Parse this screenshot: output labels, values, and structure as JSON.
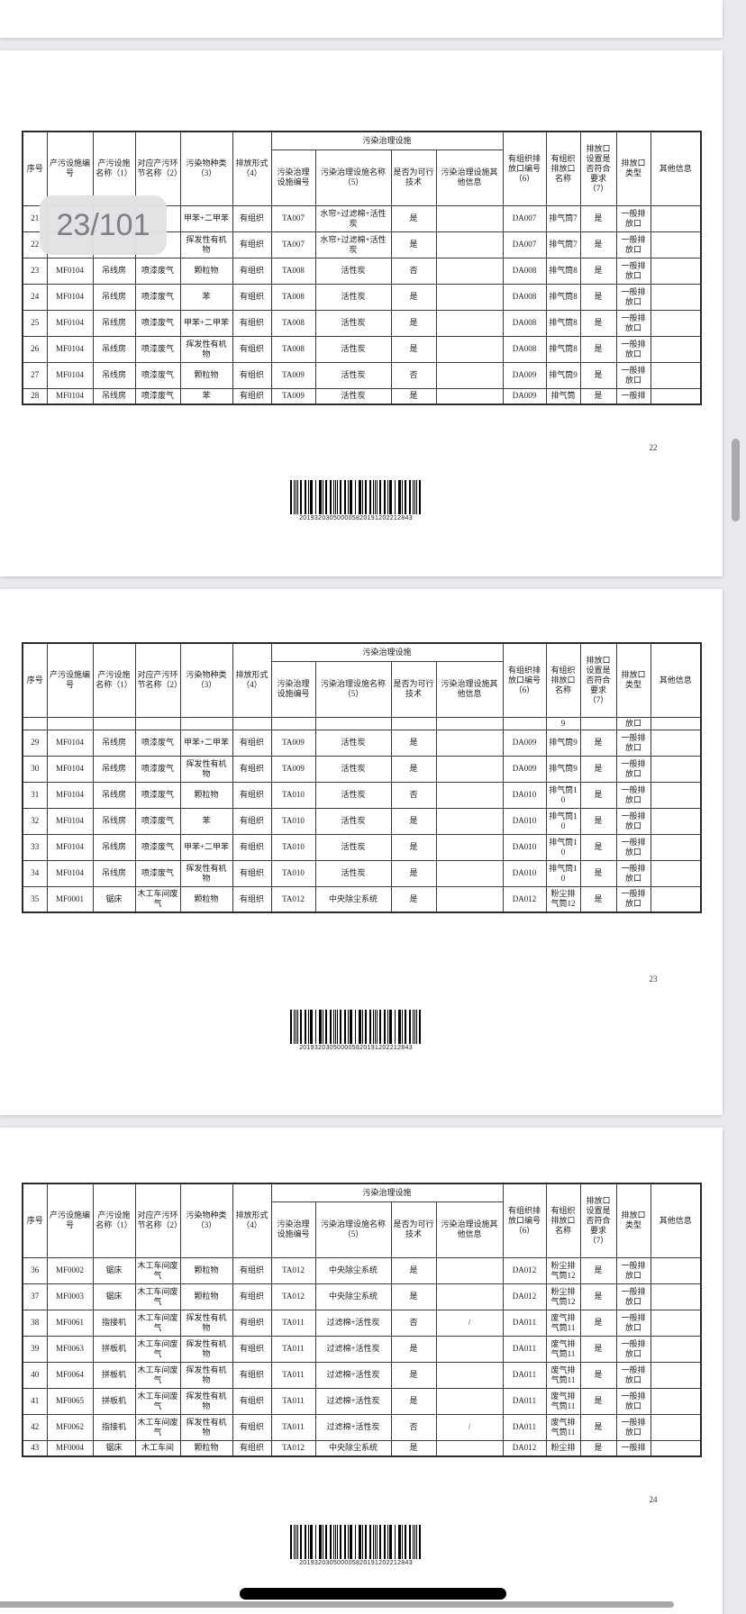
{
  "viewer": {
    "page_indicator": "23/101"
  },
  "header": {
    "left": [
      "序号",
      "产污设施编号",
      "产污设施名称（1）",
      "对应产污环节名称（2）",
      "污染物种类（3）",
      "排放形式（4）"
    ],
    "group": {
      "label": "污染治理设施",
      "children": [
        "污染治理设施编号",
        "污染治理设施名称（5）",
        "是否为可行技术",
        "污染治理设施其他信息"
      ]
    },
    "right": [
      "有组织排放口编号（6）",
      "有组织排放口名称",
      "排放口设置是否符合要求（7）",
      "排放口类型",
      "其他信息"
    ]
  },
  "pages": [
    {
      "page_footer": "22",
      "barcode_text": "201932030500005820191202212843",
      "rows": [
        {
          "cells": [
            "21",
            "",
            "",
            "",
            "甲苯+二甲苯",
            "有组织",
            "TA007",
            "水帘+过滤棉+活性炭",
            "是",
            "",
            "DA007",
            "排气筒7",
            "是",
            "一般排放口",
            ""
          ]
        },
        {
          "cells": [
            "22",
            "",
            "",
            "",
            "挥发性有机物",
            "有组织",
            "TA007",
            "水帘+过滤棉+活性炭",
            "是",
            "",
            "DA007",
            "排气筒7",
            "是",
            "一般排放口",
            ""
          ]
        },
        {
          "cells": [
            "23",
            "MF0104",
            "吊线房",
            "喷漆废气",
            "颗粒物",
            "有组织",
            "TA008",
            "活性炭",
            "否",
            "",
            "DA008",
            "排气筒8",
            "是",
            "一般排放口",
            ""
          ]
        },
        {
          "cells": [
            "24",
            "MF0104",
            "吊线房",
            "喷漆废气",
            "苯",
            "有组织",
            "TA008",
            "活性炭",
            "是",
            "",
            "DA008",
            "排气筒8",
            "是",
            "一般排放口",
            ""
          ]
        },
        {
          "cells": [
            "25",
            "MF0104",
            "吊线房",
            "喷漆废气",
            "甲苯+二甲苯",
            "有组织",
            "TA008",
            "活性炭",
            "是",
            "",
            "DA008",
            "排气筒8",
            "是",
            "一般排放口",
            ""
          ]
        },
        {
          "cells": [
            "26",
            "MF0104",
            "吊线房",
            "喷漆废气",
            "挥发性有机物",
            "有组织",
            "TA008",
            "活性炭",
            "是",
            "",
            "DA008",
            "排气筒8",
            "是",
            "一般排放口",
            ""
          ]
        },
        {
          "cells": [
            "27",
            "MF0104",
            "吊线房",
            "喷漆废气",
            "颗粒物",
            "有组织",
            "TA009",
            "活性炭",
            "否",
            "",
            "DA009",
            "排气筒9",
            "是",
            "一般排放口",
            ""
          ]
        },
        {
          "cells": [
            "28",
            "MF0104",
            "吊线房",
            "喷漆废气",
            "苯",
            "有组织",
            "TA009",
            "活性炭",
            "是",
            "",
            "DA009",
            "排气筒",
            "是",
            "一般排",
            ""
          ],
          "type": "cut"
        }
      ]
    },
    {
      "page_footer": "23",
      "barcode_text": "201932030500005820191202212843",
      "rows": [
        {
          "cells": [
            "",
            "",
            "",
            "",
            "",
            "",
            "",
            "",
            "",
            "",
            "",
            "9",
            "",
            "放口",
            ""
          ],
          "type": "cont"
        },
        {
          "cells": [
            "29",
            "MF0104",
            "吊线房",
            "喷漆废气",
            "甲苯+二甲苯",
            "有组织",
            "TA009",
            "活性炭",
            "是",
            "",
            "DA009",
            "排气筒9",
            "是",
            "一般排放口",
            ""
          ]
        },
        {
          "cells": [
            "30",
            "MF0104",
            "吊线房",
            "喷漆废气",
            "挥发性有机物",
            "有组织",
            "TA009",
            "活性炭",
            "是",
            "",
            "DA009",
            "排气筒9",
            "是",
            "一般排放口",
            ""
          ]
        },
        {
          "cells": [
            "31",
            "MF0104",
            "吊线房",
            "喷漆废气",
            "颗粒物",
            "有组织",
            "TA010",
            "活性炭",
            "否",
            "",
            "DA010",
            "排气筒10",
            "是",
            "一般排放口",
            ""
          ]
        },
        {
          "cells": [
            "32",
            "MF0104",
            "吊线房",
            "喷漆废气",
            "苯",
            "有组织",
            "TA010",
            "活性炭",
            "是",
            "",
            "DA010",
            "排气筒10",
            "是",
            "一般排放口",
            ""
          ]
        },
        {
          "cells": [
            "33",
            "MF0104",
            "吊线房",
            "喷漆废气",
            "甲苯+二甲苯",
            "有组织",
            "TA010",
            "活性炭",
            "是",
            "",
            "DA010",
            "排气筒10",
            "是",
            "一般排放口",
            ""
          ]
        },
        {
          "cells": [
            "34",
            "MF0104",
            "吊线房",
            "喷漆废气",
            "挥发性有机物",
            "有组织",
            "TA010",
            "活性炭",
            "是",
            "",
            "DA010",
            "排气筒10",
            "是",
            "一般排放口",
            ""
          ]
        },
        {
          "cells": [
            "35",
            "MF0001",
            "锯床",
            "木工车间废气",
            "颗粒物",
            "有组织",
            "TA012",
            "中央除尘系统",
            "是",
            "",
            "DA012",
            "粉尘排气筒12",
            "是",
            "一般排放口",
            ""
          ]
        }
      ]
    },
    {
      "page_footer": "24",
      "barcode_text": "201932030500005820191202212843",
      "rows": [
        {
          "cells": [
            "36",
            "MF0002",
            "锯床",
            "木工车间废气",
            "颗粒物",
            "有组织",
            "TA012",
            "中央除尘系统",
            "是",
            "",
            "DA012",
            "粉尘排气筒12",
            "是",
            "一般排放口",
            ""
          ]
        },
        {
          "cells": [
            "37",
            "MF0003",
            "锯床",
            "木工车间废气",
            "颗粒物",
            "有组织",
            "TA012",
            "中央除尘系统",
            "是",
            "",
            "DA012",
            "粉尘排气筒12",
            "是",
            "一般排放口",
            ""
          ]
        },
        {
          "cells": [
            "38",
            "MF0061",
            "指接机",
            "木工车间废气",
            "挥发性有机物",
            "有组织",
            "TA011",
            "过滤棉+活性炭",
            "否",
            "/",
            "DA011",
            "废气排气筒11",
            "是",
            "一般排放口",
            ""
          ]
        },
        {
          "cells": [
            "39",
            "MF0063",
            "拼板机",
            "木工车间废气",
            "挥发性有机物",
            "有组织",
            "TA011",
            "过滤棉+活性炭",
            "是",
            "",
            "DA011",
            "废气排气筒11",
            "是",
            "一般排放口",
            ""
          ]
        },
        {
          "cells": [
            "40",
            "MF0064",
            "拼板机",
            "木工车间废气",
            "挥发性有机物",
            "有组织",
            "TA011",
            "过滤棉+活性炭",
            "是",
            "",
            "DA011",
            "废气排气筒11",
            "是",
            "一般排放口",
            ""
          ]
        },
        {
          "cells": [
            "41",
            "MF0065",
            "拼板机",
            "木工车间废气",
            "挥发性有机物",
            "有组织",
            "TA011",
            "过滤棉+活性炭",
            "是",
            "",
            "DA011",
            "废气排气筒11",
            "是",
            "一般排放口",
            ""
          ]
        },
        {
          "cells": [
            "42",
            "MF0062",
            "指接机",
            "木工车间废气",
            "挥发性有机物",
            "有组织",
            "TA011",
            "过滤棉+活性炭",
            "否",
            "/",
            "DA011",
            "废气排气筒11",
            "是",
            "一般排放口",
            ""
          ]
        },
        {
          "cells": [
            "43",
            "MF0004",
            "锯床",
            "木工车间",
            "颗粒物",
            "有组织",
            "TA012",
            "中央除尘系统",
            "是",
            "",
            "DA012",
            "粉尘排",
            "是",
            "一般排",
            ""
          ],
          "type": "cut"
        }
      ]
    }
  ],
  "colors": {
    "background": "#e9eaee",
    "card": "#ffffff",
    "table_border": "#2b2b2b",
    "overlay_bg": "#e2e2e5",
    "overlay_text": "#7f7f84",
    "scrollbar": "#a9aaae",
    "home_indicator": "#000000"
  }
}
